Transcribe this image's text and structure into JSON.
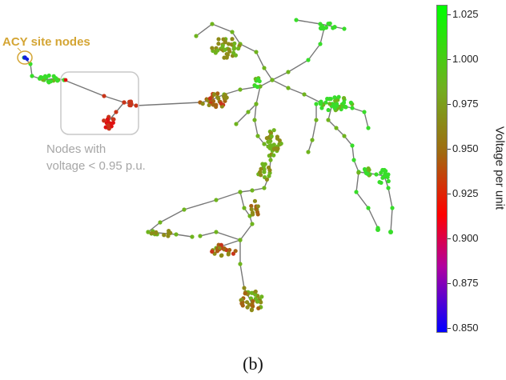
{
  "annotations": {
    "acy_site": "ACY site nodes",
    "low_voltage_line1": "Nodes with",
    "low_voltage_line2": "voltage < 0.95 p.u."
  },
  "colorbar": {
    "label": "Voltage per unit",
    "ticks": [
      "1.025",
      "1.000",
      "0.975",
      "0.950",
      "0.925",
      "0.900",
      "0.875",
      "0.850"
    ],
    "range": [
      0.845,
      1.03
    ],
    "colors": {
      "high": "#00ff00",
      "mid": "#a06a10",
      "low_red": "#ff0000",
      "low_purple": "#b000a0",
      "lowest": "#0000ff"
    }
  },
  "caption": "(b)"
}
